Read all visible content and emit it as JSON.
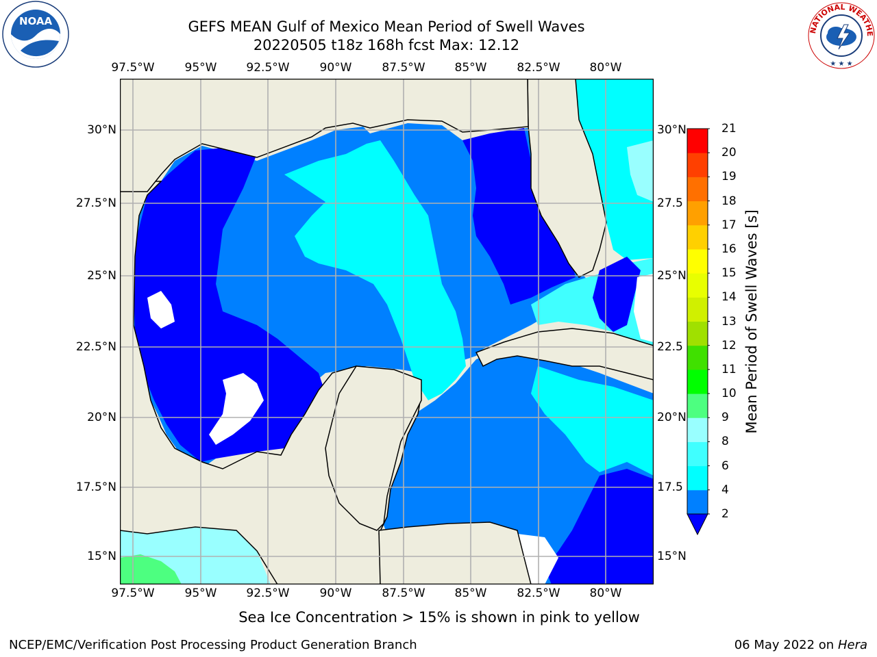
{
  "title": {
    "line1": "GEFS MEAN Gulf of Mexico Mean Period of Swell Waves",
    "line2": "20220505 t18z 168h fcst   Max: 12.12"
  },
  "axes": {
    "lon_ticks": [
      "97.5°W",
      "95°W",
      "92.5°W",
      "90°W",
      "87.5°W",
      "85°W",
      "82.5°W",
      "80°W"
    ],
    "lat_ticks_left": [
      "30°N",
      "27.5°N",
      "25°N",
      "22.5°N",
      "20°N",
      "17.5°N",
      "15°N"
    ],
    "lat_ticks_right": [
      "30°N",
      "27.5",
      "25°N",
      "22.5",
      "20°N",
      "17.5",
      "15°N"
    ]
  },
  "colorbar": {
    "label": "Mean Period of Swell Waves [s]",
    "levels": [
      "2",
      "4",
      "6",
      "8",
      "9",
      "10",
      "11",
      "12",
      "13",
      "14",
      "15",
      "16",
      "17",
      "18",
      "19",
      "20",
      "21"
    ],
    "colors": [
      "#0000ff",
      "#0080ff",
      "#00ffff",
      "#40ffff",
      "#99ffff",
      "#4dff80",
      "#00ff00",
      "#40e000",
      "#a0e000",
      "#d0f000",
      "#e8ff00",
      "#ffff00",
      "#ffd000",
      "#ffa000",
      "#ff7000",
      "#ff4000",
      "#ff0000"
    ],
    "extend": "min"
  },
  "ocean_colors": {
    "deep_blue": "#0000ff",
    "blue": "#0080ff",
    "cyan": "#00ffff",
    "light_cyan": "#40ffff",
    "pale_cyan": "#99ffff",
    "green": "#4dff80",
    "land": "#eeedde",
    "nodata": "#ffffff"
  },
  "note": "Sea Ice Concentration > 15% is shown in pink to yellow",
  "footer": {
    "left": "NCEP/EMC/Verification Post Processing Product Generation Branch",
    "right_date": "06 May 2022 on",
    "right_host": "Hera"
  },
  "logos": {
    "noaa_text": "NOAA",
    "nws_text": "NATIONAL WEATHER SERVICE"
  }
}
